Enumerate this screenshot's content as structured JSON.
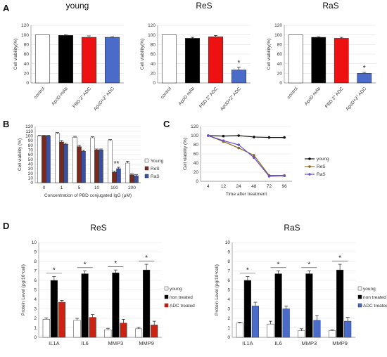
{
  "panel_labels": {
    "a": "A",
    "b": "B",
    "c": "C",
    "d": "D"
  },
  "chart_data": [
    {
      "id": "A-young",
      "type": "bar",
      "title": "young",
      "ylabel": "Cell viability(%)",
      "ylim": [
        0,
        120
      ],
      "yticks": [
        0,
        20,
        40,
        60,
        80,
        100,
        120
      ],
      "categories": [
        "control",
        "ApoD-mAb",
        "PBD 2° ADC",
        "ApoD+2° ADC"
      ],
      "values": [
        100,
        99,
        95,
        95
      ],
      "errors": [
        0,
        1,
        3,
        1
      ],
      "colors": [
        "#ffffff",
        "#000000",
        "#ee1111",
        "#4a6cc8"
      ],
      "stars": [
        "",
        "",
        "",
        ""
      ]
    },
    {
      "id": "A-ReS",
      "type": "bar",
      "title": "ReS",
      "ylabel": "Cell viability(%)",
      "ylim": [
        0,
        120
      ],
      "yticks": [
        0,
        20,
        40,
        60,
        80,
        100,
        120
      ],
      "categories": [
        "control",
        "ApoD mAb",
        "PBD 2° ADC",
        "ApoD+2° ADC"
      ],
      "values": [
        100,
        93,
        96,
        27
      ],
      "errors": [
        0,
        2,
        3,
        6
      ],
      "colors": [
        "#ffffff",
        "#000000",
        "#ee1111",
        "#4a6cc8"
      ],
      "stars": [
        "",
        "",
        "",
        "*"
      ]
    },
    {
      "id": "A-RaS",
      "type": "bar",
      "title": "RaS",
      "ylabel": "Cell viability(%)",
      "ylim": [
        0,
        120
      ],
      "yticks": [
        0,
        20,
        40,
        60,
        80,
        100,
        120
      ],
      "categories": [
        "control",
        "ApoD mAb",
        "PBD 2° ADC",
        "ApoD+2° ADC"
      ],
      "values": [
        100,
        95,
        93,
        20
      ],
      "errors": [
        0,
        1,
        2,
        2
      ],
      "colors": [
        "#ffffff",
        "#000000",
        "#ee1111",
        "#4a6cc8"
      ],
      "stars": [
        "",
        "",
        "",
        "*"
      ]
    },
    {
      "id": "B",
      "type": "bar",
      "title": "",
      "xlabel": "Concentration of PBD conjugated IgG (μM)",
      "ylabel": "Cell viability (%)",
      "ylim": [
        0,
        120
      ],
      "yticks": [
        0,
        10,
        20,
        30,
        40,
        50,
        60,
        70,
        80,
        90,
        100,
        110,
        120
      ],
      "categories": [
        "0",
        "1",
        "5",
        "10",
        "100",
        "200"
      ],
      "series": [
        {
          "name": "Young",
          "color": "#ffffff",
          "values": [
            100,
            105,
            97,
            96,
            90,
            42
          ],
          "errors": [
            1,
            2,
            2,
            2,
            2,
            4
          ]
        },
        {
          "name": "ReS",
          "color": "#7a2a1a",
          "values": [
            100,
            87,
            77,
            70,
            22,
            17
          ],
          "errors": [
            1,
            3,
            3,
            2,
            3,
            2
          ]
        },
        {
          "name": "RaS",
          "color": "#3a4fa0",
          "values": [
            100,
            82,
            67,
            70,
            30,
            15
          ],
          "errors": [
            1,
            2,
            2,
            2,
            3,
            2
          ]
        }
      ],
      "annotation": "**",
      "annotation_category": "100"
    },
    {
      "id": "C",
      "type": "line",
      "title": "",
      "xlabel": "Time after treatment",
      "ylabel": "Cell viability (%)",
      "ylim": [
        0,
        120
      ],
      "yticks": [
        0,
        20,
        40,
        60,
        80,
        100,
        120
      ],
      "categories": [
        "4",
        "12",
        "24",
        "48",
        "72",
        "96"
      ],
      "series": [
        {
          "name": "young",
          "color": "#111111",
          "values": [
            100,
            99,
            100,
            97,
            96,
            96
          ]
        },
        {
          "name": "ReS",
          "color": "#8b6a1a",
          "values": [
            100,
            87,
            73,
            57,
            13,
            13
          ]
        },
        {
          "name": "RaS",
          "color": "#6a4fcf",
          "values": [
            100,
            89,
            80,
            52,
            11,
            12
          ]
        }
      ]
    },
    {
      "id": "D-ReS",
      "type": "bar",
      "title": "ReS",
      "ylabel": "Protein Level (pg/10⁴cell)",
      "ylim": [
        0,
        10
      ],
      "yticks": [
        0,
        1,
        2,
        3,
        4,
        5,
        6,
        7,
        8,
        9,
        10
      ],
      "categories": [
        "IL1A",
        "IL6",
        "MMP3",
        "MMP9"
      ],
      "series": [
        {
          "name": "young",
          "color": "#ffffff",
          "values": [
            1.9,
            1.8,
            0.8,
            0.9
          ],
          "errors": [
            0.15,
            0.2,
            0.15,
            0.15
          ]
        },
        {
          "name": "non treated",
          "color": "#000000",
          "values": [
            6.0,
            6.7,
            6.8,
            7.1
          ],
          "errors": [
            0.4,
            0.3,
            0.3,
            0.6
          ]
        },
        {
          "name": "ADC treated",
          "color": "#cc2211",
          "values": [
            3.7,
            2.1,
            1.5,
            1.3
          ],
          "errors": [
            0.2,
            0.3,
            0.4,
            0.4
          ]
        }
      ],
      "stars": [
        "*",
        "*",
        "*",
        "*"
      ]
    },
    {
      "id": "D-RaS",
      "type": "bar",
      "title": "RaS",
      "ylabel": "Protein Level (pg/10⁴cell)",
      "ylim": [
        0,
        10
      ],
      "yticks": [
        0,
        1,
        2,
        3,
        4,
        5,
        6,
        7,
        8,
        9,
        10
      ],
      "categories": [
        "IL1A",
        "IL6",
        "MMP3",
        "MMP9"
      ],
      "series": [
        {
          "name": "young",
          "color": "#ffffff",
          "values": [
            1.5,
            1.4,
            0.7,
            0.7
          ],
          "errors": [
            0.1,
            0.3,
            0.2,
            0.1
          ]
        },
        {
          "name": "non treated",
          "color": "#000000",
          "values": [
            6.0,
            6.7,
            6.7,
            7.1
          ],
          "errors": [
            0.4,
            0.3,
            0.3,
            0.6
          ]
        },
        {
          "name": "ADC treated",
          "color": "#4a6cc8",
          "values": [
            3.3,
            3.0,
            1.8,
            1.7
          ],
          "errors": [
            0.4,
            0.3,
            0.5,
            0.4
          ]
        }
      ],
      "stars": [
        "*",
        "*",
        "*",
        "*"
      ]
    }
  ]
}
